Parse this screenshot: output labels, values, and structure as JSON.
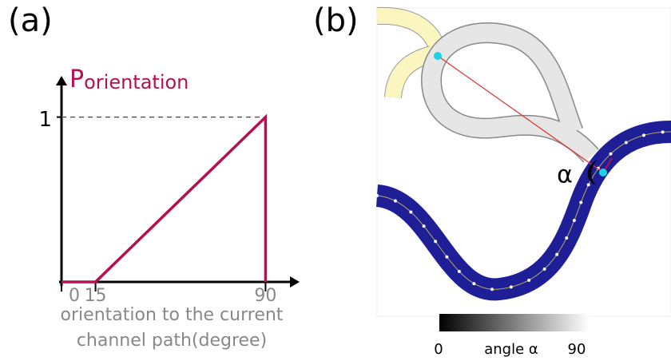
{
  "panel_labels": [
    "(a)",
    "(b)"
  ],
  "chart_data": {
    "type": "line",
    "ylabel": "P",
    "ylabel_subscript": "orientation",
    "xlabel": [
      "orientation to the current",
      "channel path(degree)"
    ],
    "series": [
      {
        "color": "#b5104f",
        "x": [
          0,
          15,
          90,
          90
        ],
        "values": [
          0,
          0,
          1,
          0
        ]
      }
    ],
    "xlim": [
      0,
      105
    ],
    "ylim": [
      0,
      1.25
    ],
    "xticks": [
      0,
      15,
      90
    ],
    "yticks": [
      1
    ]
  },
  "diagram": {
    "angle_symbol": "α",
    "colorbar": {
      "range": [
        0,
        90
      ],
      "label": "angle α"
    }
  }
}
